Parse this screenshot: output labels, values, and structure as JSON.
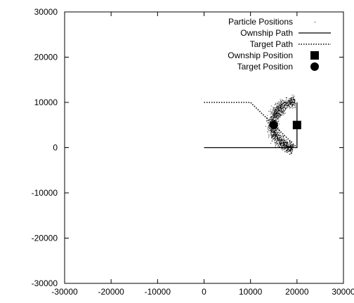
{
  "chart_data": {
    "type": "scatter",
    "title": "",
    "xlabel": "",
    "ylabel": "",
    "xlim": [
      -30000,
      30000
    ],
    "ylim": [
      -30000,
      30000
    ],
    "xticks": [
      "-30000",
      "-20000",
      "-10000",
      "0",
      "10000",
      "20000",
      "30000"
    ],
    "yticks": [
      "30000",
      "20000",
      "10000",
      "0",
      "-10000",
      "-20000",
      "-30000"
    ],
    "xtick_values": [
      -30000,
      -20000,
      -10000,
      0,
      10000,
      20000,
      30000
    ],
    "ytick_values": [
      30000,
      20000,
      10000,
      0,
      -10000,
      -20000,
      -30000
    ],
    "grid": false,
    "legend_position": "top-right",
    "series": [
      {
        "name": "Particle Positions",
        "kind": "particle-cloud",
        "color": "#000000",
        "center": [
          20000,
          5000
        ],
        "radius": 5300,
        "angle_range_deg": [
          95,
          260
        ],
        "count": 1400
      },
      {
        "name": "Ownship Path",
        "kind": "solid-line",
        "color": "#000000",
        "points": [
          [
            0,
            0
          ],
          [
            20000,
            0
          ],
          [
            20000,
            10000
          ]
        ]
      },
      {
        "name": "Target Path",
        "kind": "dotted-line",
        "color": "#000000",
        "points": [
          [
            0,
            10000
          ],
          [
            10000,
            10000
          ],
          [
            20000,
            0
          ]
        ]
      },
      {
        "name": "Ownship Position",
        "kind": "square-marker",
        "color": "#000000",
        "points": [
          [
            20000,
            5000
          ]
        ]
      },
      {
        "name": "Target Position",
        "kind": "circle-marker",
        "color": "#000000",
        "points": [
          [
            15000,
            5000
          ]
        ]
      }
    ]
  }
}
